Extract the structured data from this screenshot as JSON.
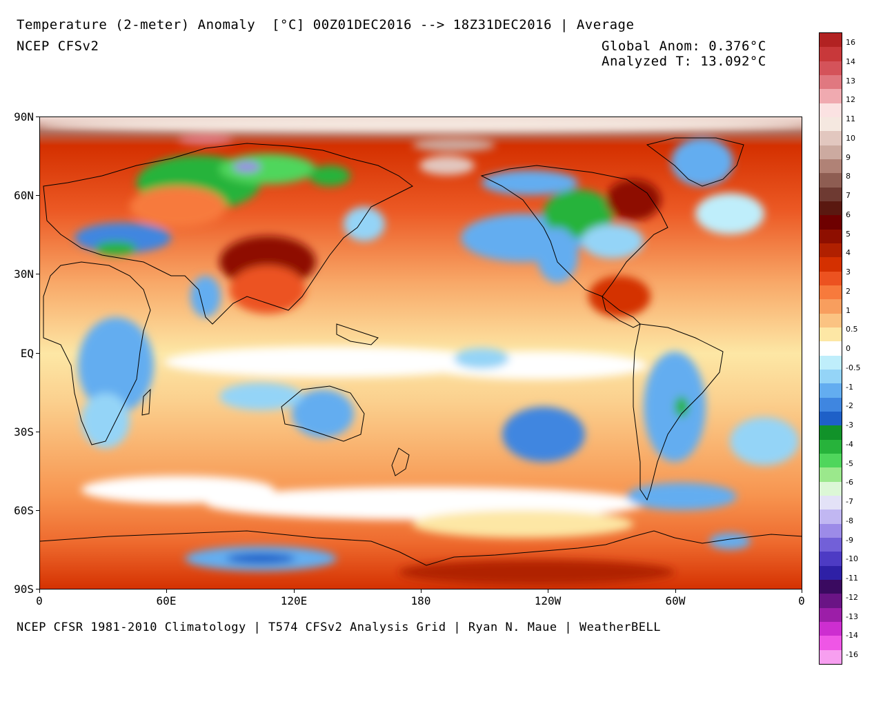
{
  "header": {
    "title": "Temperature (2-meter) Anomaly  [°C] 00Z01DEC2016 --> 18Z31DEC2016 | Average",
    "model": "NCEP CFSv2",
    "global_anom": "Global Anom: 0.376°C",
    "analyzed_t": "Analyzed T: 13.092°C"
  },
  "footer": {
    "credit": "NCEP CFSR 1981-2010 Climatology | T574 CFSv2 Analysis Grid | Ryan N. Maue | WeatherBELL"
  },
  "axes": {
    "lat_labels": [
      "90N",
      "60N",
      "30N",
      "EQ",
      "30S",
      "60S",
      "90S"
    ],
    "lon_labels": [
      "0",
      "60E",
      "120E",
      "180",
      "120W",
      "60W",
      "0"
    ]
  },
  "colorbar": {
    "labels": [
      "16",
      "14",
      "13",
      "12",
      "11",
      "10",
      "9",
      "8",
      "7",
      "6",
      "5",
      "4",
      "3",
      "2",
      "1",
      "0.5",
      "0",
      "-0.5",
      "-1",
      "-2",
      "-3",
      "-4",
      "-5",
      "-6",
      "-7",
      "-8",
      "-9",
      "-10",
      "-11",
      "-12",
      "-13",
      "-14",
      "-16"
    ],
    "colors": [
      "#b22222",
      "#c8383a",
      "#d4535a",
      "#e07880",
      "#f0aab0",
      "#fbe2e2",
      "#f5e8e0",
      "#e2c7bf",
      "#ccaaa0",
      "#b08276",
      "#8e5d52",
      "#6e3a32",
      "#5a1810",
      "#6e0000",
      "#8e0f00",
      "#b02000",
      "#d43000",
      "#ec5220",
      "#f77a3c",
      "#f89e5e",
      "#fbc382",
      "#fde7a5",
      "#ffffff",
      "#bfeefb",
      "#94d4f7",
      "#63adf0",
      "#3f86e0",
      "#1e60c8",
      "#119229",
      "#27b33b",
      "#4fd65c",
      "#9be88c",
      "#dcf7d6",
      "#e3e2f7",
      "#c1b7f2",
      "#9c8be8",
      "#7260d8",
      "#4d3bc4",
      "#2e20a6",
      "#3a0a60",
      "#6a1485",
      "#9c1ea8",
      "#cd2ed0",
      "#ef56e6",
      "#f79ff0"
    ]
  }
}
